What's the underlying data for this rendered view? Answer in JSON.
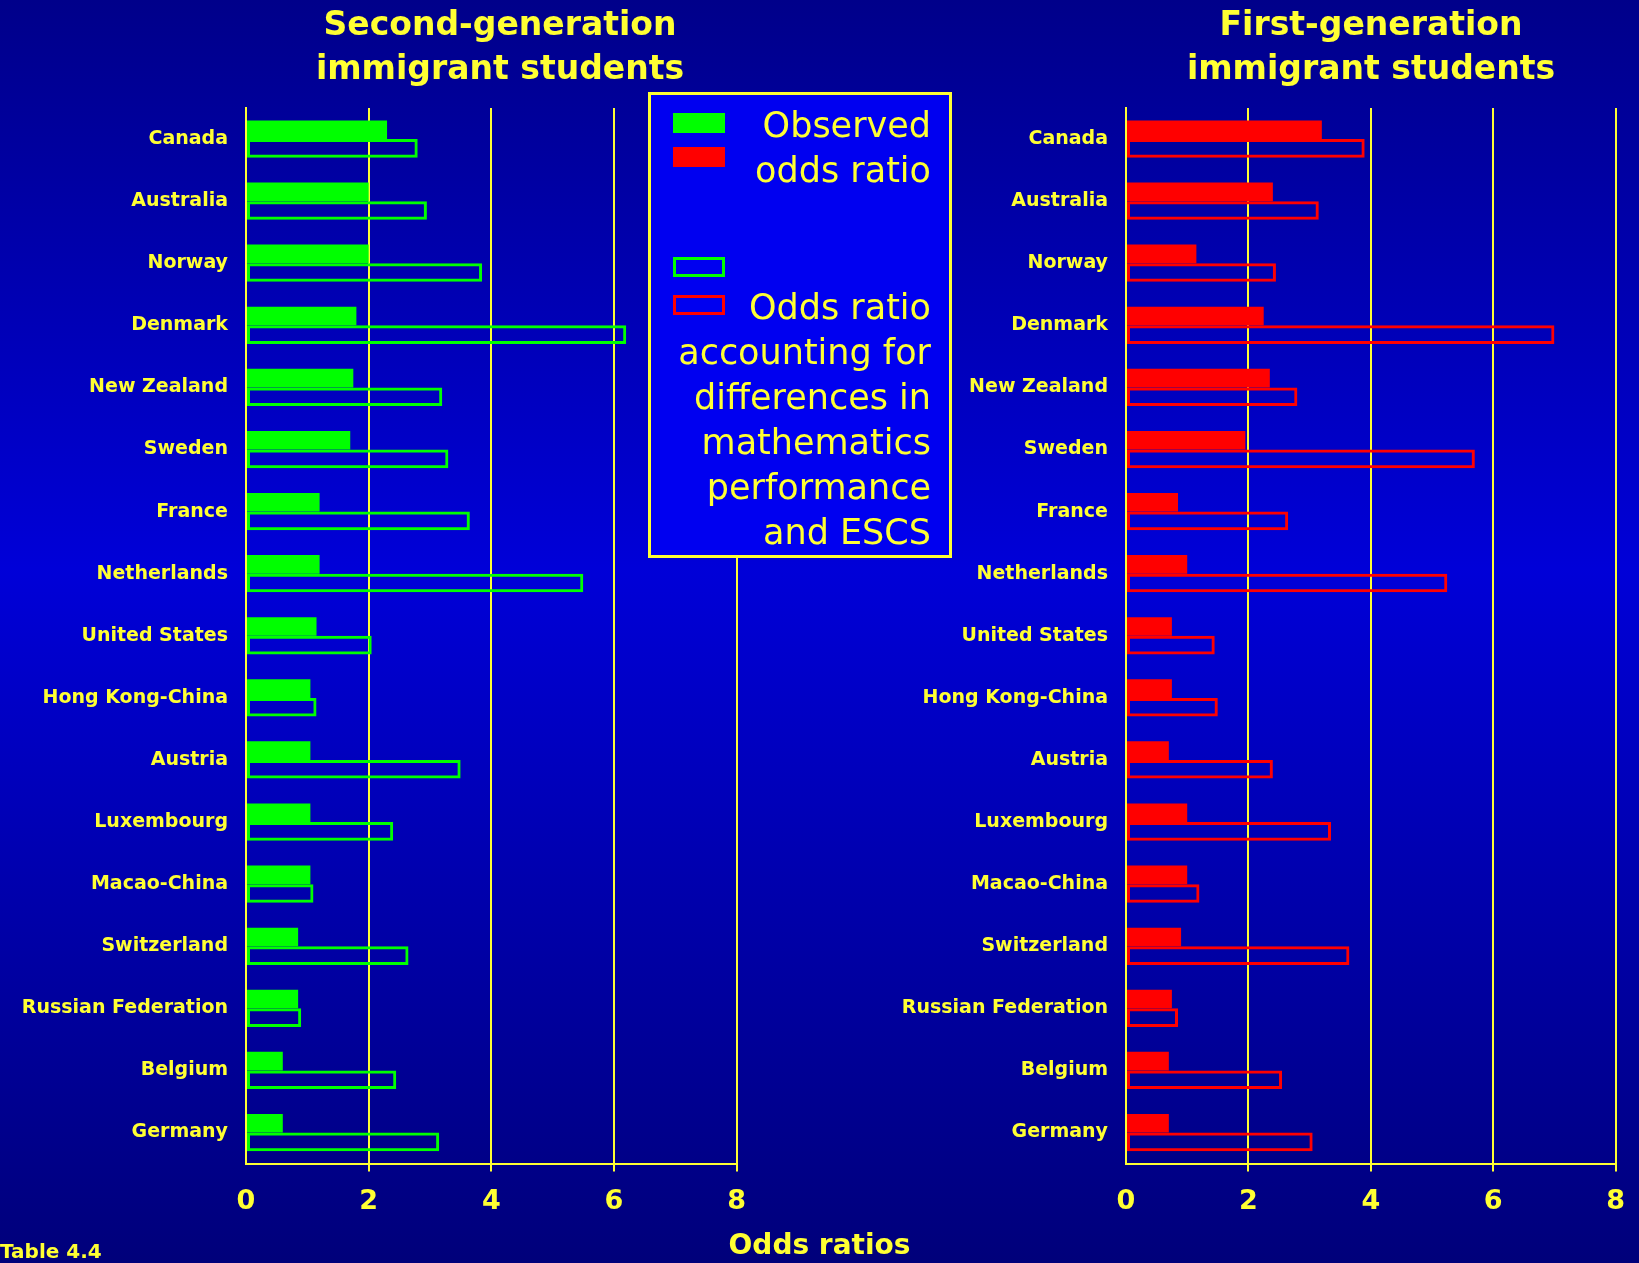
{
  "chart_data": [
    {
      "type": "bar",
      "orientation": "horizontal",
      "title": "Second-generation immigrant students",
      "xlabel": "Odds ratios",
      "annotations": [
        "Table 4.4"
      ],
      "categories": [
        "Canada",
        "Australia",
        "Norway",
        "Denmark",
        "New Zealand",
        "Sweden",
        "France",
        "Netherlands",
        "United States",
        "Hong Kong-China",
        "Austria",
        "Luxembourg",
        "Macao-China",
        "Switzerland",
        "Russian Federation",
        "Belgium",
        "Germany"
      ],
      "series": [
        {
          "name": "Observed odds ratio",
          "color": "#00ff00",
          "values": [
            2.3,
            2.0,
            2.0,
            1.8,
            1.75,
            1.7,
            1.2,
            1.2,
            1.15,
            1.05,
            1.05,
            1.05,
            1.05,
            0.85,
            0.85,
            0.6,
            0.6
          ]
        },
        {
          "name": "Odds ratio accounting for differences in mathematics performance and ESCS",
          "color": "#00ff00",
          "values": [
            2.8,
            2.95,
            3.85,
            6.2,
            3.2,
            3.3,
            3.65,
            5.5,
            2.05,
            1.15,
            3.5,
            2.4,
            1.1,
            2.65,
            0.9,
            2.45,
            3.15
          ]
        }
      ],
      "xlim": [
        0,
        8
      ],
      "xticks": [
        0,
        2,
        4,
        6,
        8
      ],
      "grid": "x",
      "legend": "right"
    },
    {
      "type": "bar",
      "orientation": "horizontal",
      "title": "First-generation immigrant students",
      "categories": [
        "Canada",
        "Australia",
        "Norway",
        "Denmark",
        "New Zealand",
        "Sweden",
        "France",
        "Netherlands",
        "United States",
        "Hong Kong-China",
        "Austria",
        "Luxembourg",
        "Macao-China",
        "Switzerland",
        "Russian Federation",
        "Belgium",
        "Germany"
      ],
      "series": [
        {
          "color": "#ff0000",
          "values": [
            3.2,
            2.4,
            1.15,
            2.25,
            2.35,
            1.95,
            0.85,
            1.0,
            0.75,
            0.75,
            0.7,
            1.0,
            1.0,
            0.9,
            0.75,
            0.7,
            0.7
          ]
        },
        {
          "color": "#ff0000",
          "values": [
            3.9,
            3.15,
            2.45,
            7.0,
            2.8,
            5.7,
            2.65,
            5.25,
            1.45,
            1.5,
            2.4,
            3.35,
            1.2,
            3.65,
            0.85,
            2.55,
            3.05
          ]
        }
      ],
      "xlim": [
        0,
        8
      ],
      "xticks": [
        0,
        2,
        4,
        6,
        8
      ],
      "grid": "x"
    }
  ]
}
